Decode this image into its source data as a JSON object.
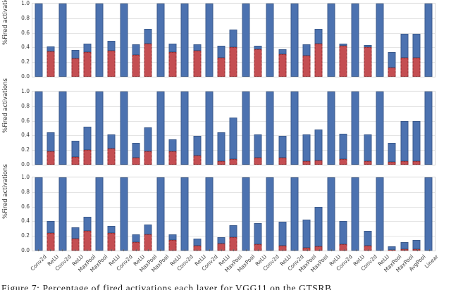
{
  "figure": {
    "ylabel": "%Fired activations",
    "ytick_labels": [
      "1.0",
      "0.8",
      "0.6",
      "0.4",
      "0.2",
      "0.0"
    ],
    "caption": "Figure 7: Percentage of fired activations each layer for VGG11 on the GTSRB",
    "colors": {
      "bar_blue": "#4C72B0",
      "bar_red": "#C44E52",
      "grid": "#e4e4e4",
      "spine": "#d6d6d6"
    }
  },
  "chart_data": [
    {
      "type": "bar",
      "stacked": true,
      "subplot": "top",
      "title": "",
      "xlabel": "",
      "ylabel": "%Fired activations",
      "ylim": [
        0.0,
        1.0
      ],
      "yticks": [
        0.0,
        0.2,
        0.4,
        0.6,
        0.8,
        1.0
      ],
      "grid": true,
      "legend": "none",
      "categories": [
        "Conv2d",
        "ReLU",
        "Conv2d",
        "ReLU",
        "MaxPool",
        "MaxPool",
        "ReLU",
        "Conv2d",
        "ReLU",
        "MaxPool",
        "MaxPool",
        "ReLU",
        "Conv2d",
        "ReLU",
        "Conv2d",
        "ReLU",
        "MaxPool",
        "MaxPool",
        "ReLU",
        "Conv2d",
        "ReLU",
        "Conv2d",
        "MaxPool",
        "MaxPool",
        "ReLU",
        "Conv2d",
        "ReLU",
        "Conv2d",
        "ReLU",
        "MaxPool",
        "MaxPool",
        "AvgPool",
        "Linear"
      ],
      "series": [
        {
          "name": "total_fired_blue",
          "color": "#4C72B0",
          "values": [
            1.0,
            0.42,
            1.0,
            0.37,
            0.46,
            1.0,
            0.49,
            1.0,
            0.44,
            0.655,
            1.0,
            0.455,
            1.0,
            0.44,
            1.0,
            0.42,
            0.64,
            1.0,
            0.42,
            1.0,
            0.38,
            1.0,
            0.44,
            0.655,
            1.0,
            0.45,
            1.0,
            0.43,
            1.0,
            0.34,
            0.585,
            0.585,
            1.0
          ]
        },
        {
          "name": "red_bottom_segment",
          "color": "#C44E52",
          "values": [
            0,
            0.35,
            0,
            0.25,
            0.34,
            0,
            0.36,
            0,
            0.3,
            0.455,
            0,
            0.34,
            0,
            0.355,
            0,
            0.26,
            0.4,
            0,
            0.375,
            0,
            0.31,
            0,
            0.29,
            0.455,
            0,
            0.425,
            0,
            0.4,
            0,
            0.125,
            0.26,
            0.26,
            0
          ]
        }
      ]
    },
    {
      "type": "bar",
      "stacked": true,
      "subplot": "middle",
      "title": "",
      "xlabel": "",
      "ylabel": "%Fired activations",
      "ylim": [
        0.0,
        1.0
      ],
      "yticks": [
        0.0,
        0.2,
        0.4,
        0.6,
        0.8,
        1.0
      ],
      "grid": true,
      "legend": "none",
      "categories": [
        "Conv2d",
        "ReLU",
        "Conv2d",
        "ReLU",
        "MaxPool",
        "MaxPool",
        "ReLU",
        "Conv2d",
        "ReLU",
        "MaxPool",
        "MaxPool",
        "ReLU",
        "Conv2d",
        "ReLU",
        "Conv2d",
        "ReLU",
        "MaxPool",
        "MaxPool",
        "ReLU",
        "Conv2d",
        "ReLU",
        "Conv2d",
        "MaxPool",
        "MaxPool",
        "ReLU",
        "Conv2d",
        "ReLU",
        "Conv2d",
        "ReLU",
        "MaxPool",
        "MaxPool",
        "AvgPool",
        "Linear"
      ],
      "series": [
        {
          "name": "total_fired_blue",
          "color": "#4C72B0",
          "values": [
            1.0,
            0.44,
            1.0,
            0.33,
            0.525,
            1.0,
            0.42,
            1.0,
            0.3,
            0.505,
            1.0,
            0.345,
            1.0,
            0.39,
            1.0,
            0.435,
            0.64,
            1.0,
            0.42,
            1.0,
            0.395,
            1.0,
            0.415,
            0.475,
            1.0,
            0.42,
            1.0,
            0.415,
            1.0,
            0.3,
            0.6,
            0.6,
            1.0
          ]
        },
        {
          "name": "red_bottom_segment",
          "color": "#C44E52",
          "values": [
            0,
            0.185,
            0,
            0.105,
            0.205,
            0,
            0.225,
            0,
            0.1,
            0.18,
            0,
            0.18,
            0,
            0.125,
            0,
            0.045,
            0.075,
            0,
            0.1,
            0,
            0.095,
            0,
            0.045,
            0.055,
            0,
            0.075,
            0,
            0.05,
            0,
            0.04,
            0.05,
            0.05,
            0
          ]
        }
      ]
    },
    {
      "type": "bar",
      "stacked": true,
      "subplot": "bottom",
      "title": "",
      "xlabel": "",
      "ylabel": "%Fired activations",
      "ylim": [
        0.0,
        1.0
      ],
      "yticks": [
        0.0,
        0.2,
        0.4,
        0.6,
        0.8,
        1.0
      ],
      "grid": true,
      "legend": "none",
      "categories": [
        "Conv2d",
        "ReLU",
        "Conv2d",
        "ReLU",
        "MaxPool",
        "MaxPool",
        "ReLU",
        "Conv2d",
        "ReLU",
        "MaxPool",
        "MaxPool",
        "ReLU",
        "Conv2d",
        "ReLU",
        "Conv2d",
        "ReLU",
        "MaxPool",
        "MaxPool",
        "ReLU",
        "Conv2d",
        "ReLU",
        "Conv2d",
        "MaxPool",
        "MaxPool",
        "ReLU",
        "Conv2d",
        "ReLU",
        "Conv2d",
        "ReLU",
        "MaxPool",
        "MaxPool",
        "AvgPool",
        "Linear"
      ],
      "series": [
        {
          "name": "total_fired_blue",
          "color": "#4C72B0",
          "values": [
            1.0,
            0.41,
            1.0,
            0.315,
            0.465,
            1.0,
            0.335,
            1.0,
            0.225,
            0.36,
            1.0,
            0.215,
            1.0,
            0.17,
            1.0,
            0.185,
            0.345,
            1.0,
            0.37,
            1.0,
            0.4,
            1.0,
            0.42,
            0.59,
            1.0,
            0.4,
            1.0,
            0.275,
            1.0,
            0.06,
            0.115,
            0.145,
            1.0
          ]
        },
        {
          "name": "red_bottom_segment",
          "color": "#C44E52",
          "values": [
            0,
            0.245,
            0,
            0.16,
            0.27,
            0,
            0.24,
            0,
            0.115,
            0.225,
            0,
            0.14,
            0,
            0.07,
            0,
            0.1,
            0.18,
            0,
            0.085,
            0,
            0.07,
            0,
            0.04,
            0.055,
            0,
            0.085,
            0,
            0.07,
            0,
            0.01,
            0.02,
            0.02,
            0
          ]
        }
      ]
    }
  ]
}
